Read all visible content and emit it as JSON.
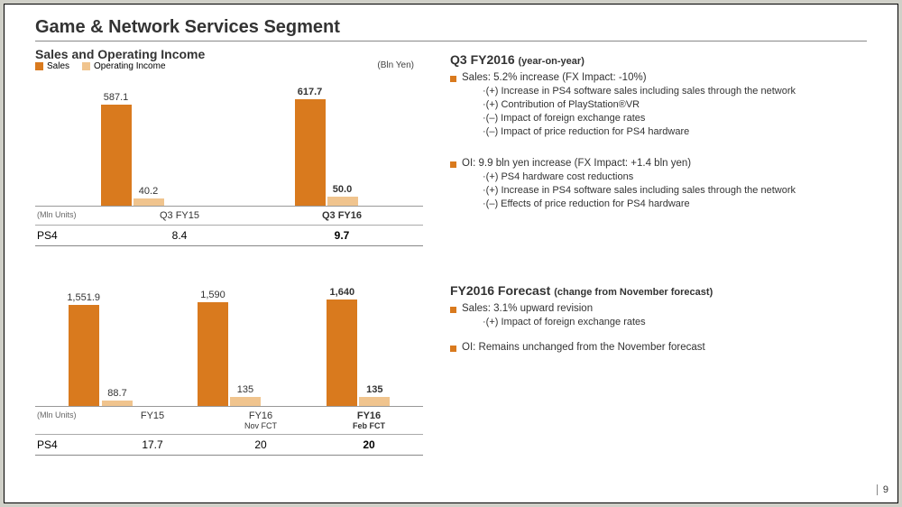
{
  "colors": {
    "sales": "#d97a1e",
    "oi": "#f0c48e",
    "marker": "#d97a1e"
  },
  "title": "Game & Network Services Segment",
  "subtitle": "Sales and Operating Income",
  "legend": {
    "sales": "Sales",
    "oi": "Operating Income"
  },
  "unit_label": "(Bln Yen)",
  "mln_units_label": "(Mln Units)",
  "chart1": {
    "max": 680,
    "groups": [
      {
        "cat": "Q3 FY15",
        "sales": 587.1,
        "oi": 40.2,
        "bold": false
      },
      {
        "cat": "Q3 FY16",
        "sales": 617.7,
        "oi": 50.0,
        "oi_disp": "50.0",
        "bold": true
      }
    ],
    "row_label": "PS4",
    "row_values": [
      "8.4",
      "9.7"
    ],
    "row_bold": [
      false,
      true
    ]
  },
  "chart2": {
    "max": 1800,
    "groups": [
      {
        "cat": "FY15",
        "catsub": "",
        "sales": 1551.9,
        "sales_disp": "1,551.9",
        "oi": 88.7,
        "bold": false
      },
      {
        "cat": "FY16",
        "catsub": "Nov FCT",
        "sales": 1590,
        "sales_disp": "1,590",
        "oi": 135,
        "bold": false
      },
      {
        "cat": "FY16",
        "catsub": "Feb FCT",
        "sales": 1640,
        "sales_disp": "1,640",
        "oi": 135,
        "bold": true
      }
    ],
    "row_label": "PS4",
    "row_values": [
      "17.7",
      "20",
      "20"
    ],
    "row_bold": [
      false,
      false,
      true
    ]
  },
  "right": {
    "q3": {
      "title": "Q3 FY2016",
      "paren": "(year-on-year)",
      "sales_line": "Sales: 5.2% increase (FX Impact: -10%)",
      "sales_sub": [
        "·(+) Increase in PS4 software sales including sales through the network",
        "·(+) Contribution of PlayStation®VR",
        "·(–) Impact of foreign exchange rates",
        "·(–) Impact of price reduction for PS4 hardware"
      ],
      "oi_line": "OI:  9.9 bln yen increase (FX Impact: +1.4 bln yen)",
      "oi_sub": [
        "·(+) PS4 hardware cost reductions",
        "·(+) Increase in PS4 software sales including sales through the network",
        "·(–) Effects of price reduction for PS4 hardware"
      ]
    },
    "fc": {
      "title": "FY2016 Forecast",
      "paren": "(change from November forecast)",
      "sales_line": "Sales: 3.1% upward revision",
      "sales_sub": [
        "·(+) Impact of foreign exchange rates"
      ],
      "oi_line": "OI: Remains unchanged from the November forecast"
    }
  },
  "page": "9"
}
